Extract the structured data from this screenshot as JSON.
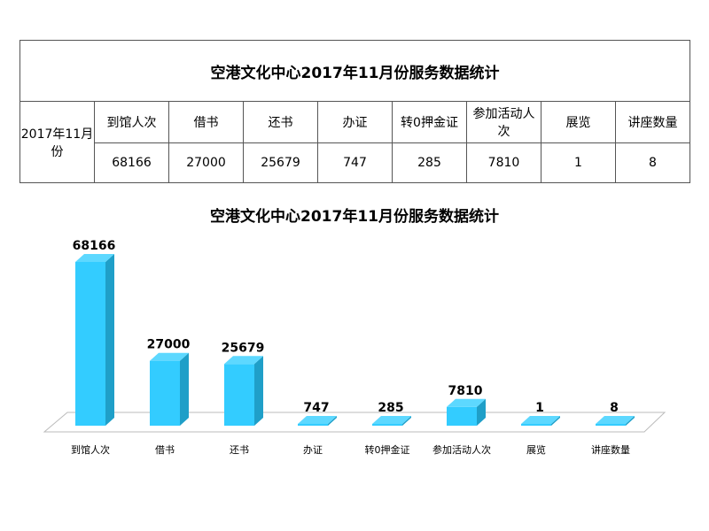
{
  "table": {
    "title": "空港文化中心2017年11月份服务数据统计",
    "row_label": "2017年11月份",
    "headers": [
      "到馆人次",
      "借书",
      "还书",
      "办证",
      "转0押金证",
      "参加活动人次",
      "展览",
      "讲座数量"
    ],
    "values": [
      "68166",
      "27000",
      "25679",
      "747",
      "285",
      "7810",
      "1",
      "8"
    ]
  },
  "chart_data": {
    "type": "bar",
    "title": "空港文化中心2017年11月份服务数据统计",
    "categories": [
      "到馆人次",
      "借书",
      "还书",
      "办证",
      "转0押金证",
      "参加活动人次",
      "展览",
      "讲座数量"
    ],
    "values": [
      68166,
      27000,
      25679,
      747,
      285,
      7810,
      1,
      8
    ],
    "data_labels": [
      "68166",
      "27000",
      "25679",
      "747",
      "285",
      "7810",
      "1",
      "8"
    ],
    "style": "3d-column",
    "colors": {
      "front": "#33ccff",
      "side": "#1f9fc8",
      "top": "#5dd8ff",
      "floor_stroke": "#bbbbbb"
    },
    "grid": false,
    "legend": "none"
  }
}
